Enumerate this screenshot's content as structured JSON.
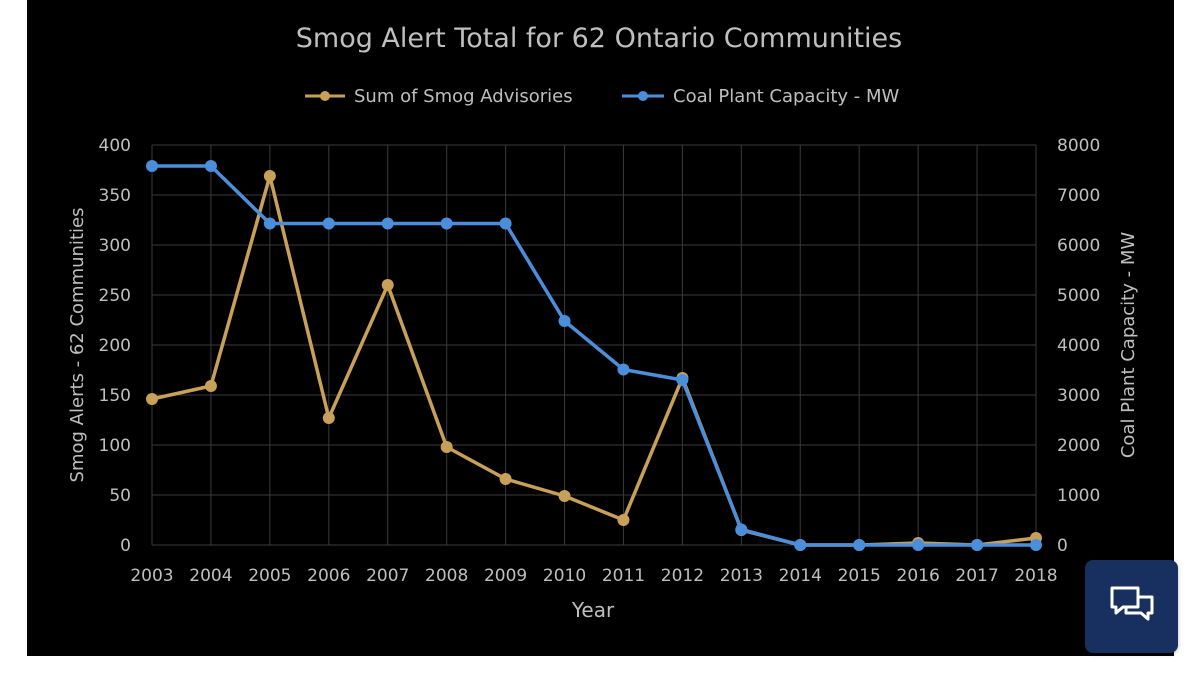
{
  "chart_data": {
    "type": "line",
    "title": "Smog Alert Total for 62 Ontario Communities",
    "xlabel": "Year",
    "ylabel_left": "Smog Alerts - 62 Communities",
    "ylabel_right": "Coal Plant Capacity - MW",
    "ylim_left": [
      0,
      400
    ],
    "ylim_right": [
      0,
      8000
    ],
    "left_ticks": [
      "0",
      "50",
      "100",
      "150",
      "200",
      "250",
      "300",
      "350",
      "400"
    ],
    "right_ticks": [
      "0",
      "1000",
      "2000",
      "3000",
      "4000",
      "5000",
      "6000",
      "7000",
      "8000"
    ],
    "categories": [
      "2003",
      "2004",
      "2005",
      "2006",
      "2007",
      "2008",
      "2009",
      "2010",
      "2011",
      "2012",
      "2013",
      "2014",
      "2015",
      "2016",
      "2017",
      "2018"
    ],
    "grid": true,
    "legend_position": "top",
    "series": [
      {
        "name": "Sum of Smog Advisories",
        "axis": "left",
        "color": "#c8a05a",
        "values": [
          146,
          159,
          369,
          127,
          260,
          98,
          66,
          49,
          25,
          167,
          15,
          0,
          0,
          2,
          0,
          7
        ]
      },
      {
        "name": "Coal Plant Capacity - MW",
        "axis": "right",
        "color": "#4b8fdc",
        "values": [
          7580,
          7580,
          6430,
          6430,
          6430,
          6430,
          6430,
          4480,
          3510,
          3300,
          310,
          0,
          0,
          0,
          0,
          0
        ]
      }
    ]
  },
  "chat_button": {
    "icon": "chat-bubbles-icon",
    "color": "#17305f"
  }
}
